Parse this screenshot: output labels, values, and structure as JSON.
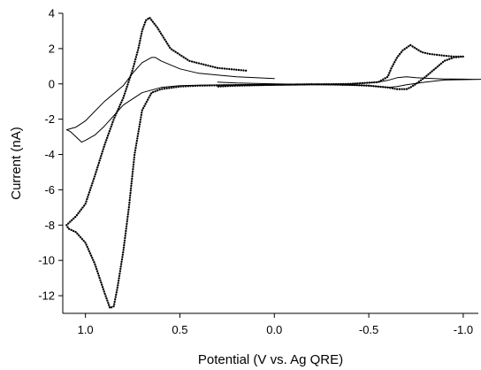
{
  "chart_data": {
    "type": "line",
    "title": "",
    "xlabel": "Potential (V vs. Ag QRE)",
    "ylabel": "Current (nA)",
    "xlim": [
      1.12,
      -1.08
    ],
    "ylim": [
      -13,
      4
    ],
    "x_reversed": true,
    "grid": false,
    "legend": "none",
    "xticks": [
      1.0,
      0.5,
      0.0,
      -0.5,
      -1.0
    ],
    "xtick_labels": [
      "1.0",
      "0.5",
      "0.0",
      "-0.5",
      "-1.0"
    ],
    "yticks": [
      4,
      2,
      0,
      -2,
      -4,
      -6,
      -8,
      -10,
      -12
    ],
    "ytick_labels": [
      "4",
      "2",
      "0",
      "-2",
      "-4",
      "-6",
      "-8",
      "-10",
      "-12"
    ],
    "series": [
      {
        "style": "dotted",
        "color": "#000000",
        "x": [
          0.15,
          0.3,
          0.45,
          0.55,
          0.62,
          0.66,
          0.68,
          0.7,
          0.72,
          0.75,
          0.8,
          0.85,
          0.9,
          0.95,
          1.0,
          1.05,
          1.1,
          1.09,
          1.05,
          1.0,
          0.95,
          0.9,
          0.87,
          0.85,
          0.83,
          0.8,
          0.77,
          0.74,
          0.7,
          0.65,
          0.6,
          0.5,
          0.4,
          0.3,
          0.0,
          -0.2,
          -0.4,
          -0.55,
          -0.6,
          -0.62,
          -0.65,
          -0.68,
          -0.72,
          -0.75,
          -0.78,
          -0.82,
          -0.9,
          -0.95,
          -1.0,
          -0.95,
          -0.9,
          -0.8,
          -0.75,
          -0.72,
          -0.7,
          -0.68,
          -0.65,
          -0.6,
          -0.5,
          -0.4,
          -0.2,
          0.0,
          0.2,
          0.3
        ],
        "y": [
          0.75,
          0.9,
          1.3,
          2.0,
          3.2,
          3.75,
          3.6,
          3.0,
          2.0,
          0.8,
          -0.8,
          -2.0,
          -3.5,
          -5.2,
          -6.8,
          -7.5,
          -8.0,
          -8.2,
          -8.4,
          -9.0,
          -10.2,
          -11.8,
          -12.7,
          -12.6,
          -11.5,
          -9.5,
          -7.0,
          -4.0,
          -1.5,
          -0.5,
          -0.3,
          -0.15,
          -0.1,
          -0.08,
          -0.05,
          -0.03,
          0.0,
          0.1,
          0.4,
          0.9,
          1.5,
          1.9,
          2.2,
          2.0,
          1.8,
          1.7,
          1.6,
          1.55,
          1.55,
          1.5,
          1.3,
          0.4,
          0.0,
          -0.2,
          -0.3,
          -0.3,
          -0.3,
          -0.2,
          -0.1,
          -0.05,
          -0.02,
          -0.05,
          -0.1,
          -0.15
        ]
      },
      {
        "style": "solid",
        "color": "#000000",
        "x": [
          0.0,
          0.2,
          0.4,
          0.5,
          0.6,
          0.63,
          0.65,
          0.7,
          0.75,
          0.8,
          0.9,
          1.0,
          1.05,
          1.1,
          1.08,
          1.05,
          1.02,
          1.0,
          0.95,
          0.9,
          0.85,
          0.8,
          0.7,
          0.6,
          0.5,
          0.4,
          0.2,
          0.0,
          -0.2,
          -0.4,
          -0.55,
          -0.6,
          -0.65,
          -0.7,
          -0.75,
          -0.8,
          -0.9,
          -1.0,
          -1.05,
          -1.1,
          -1.0,
          -0.9,
          -0.8,
          -0.7,
          -0.65,
          -0.6,
          -0.55,
          -0.5,
          -0.3,
          0.0,
          0.2,
          0.3
        ],
        "y": [
          0.3,
          0.4,
          0.6,
          0.85,
          1.3,
          1.5,
          1.5,
          1.2,
          0.6,
          -0.1,
          -1.0,
          -2.1,
          -2.45,
          -2.6,
          -2.7,
          -3.0,
          -3.3,
          -3.2,
          -2.9,
          -2.4,
          -1.8,
          -1.2,
          -0.5,
          -0.2,
          -0.1,
          -0.07,
          -0.05,
          -0.03,
          -0.02,
          0.0,
          0.1,
          0.2,
          0.35,
          0.4,
          0.35,
          0.32,
          0.28,
          0.27,
          0.26,
          0.26,
          0.24,
          0.22,
          0.1,
          -0.05,
          -0.15,
          -0.2,
          -0.15,
          -0.1,
          -0.05,
          0.0,
          0.05,
          0.1
        ]
      }
    ]
  }
}
